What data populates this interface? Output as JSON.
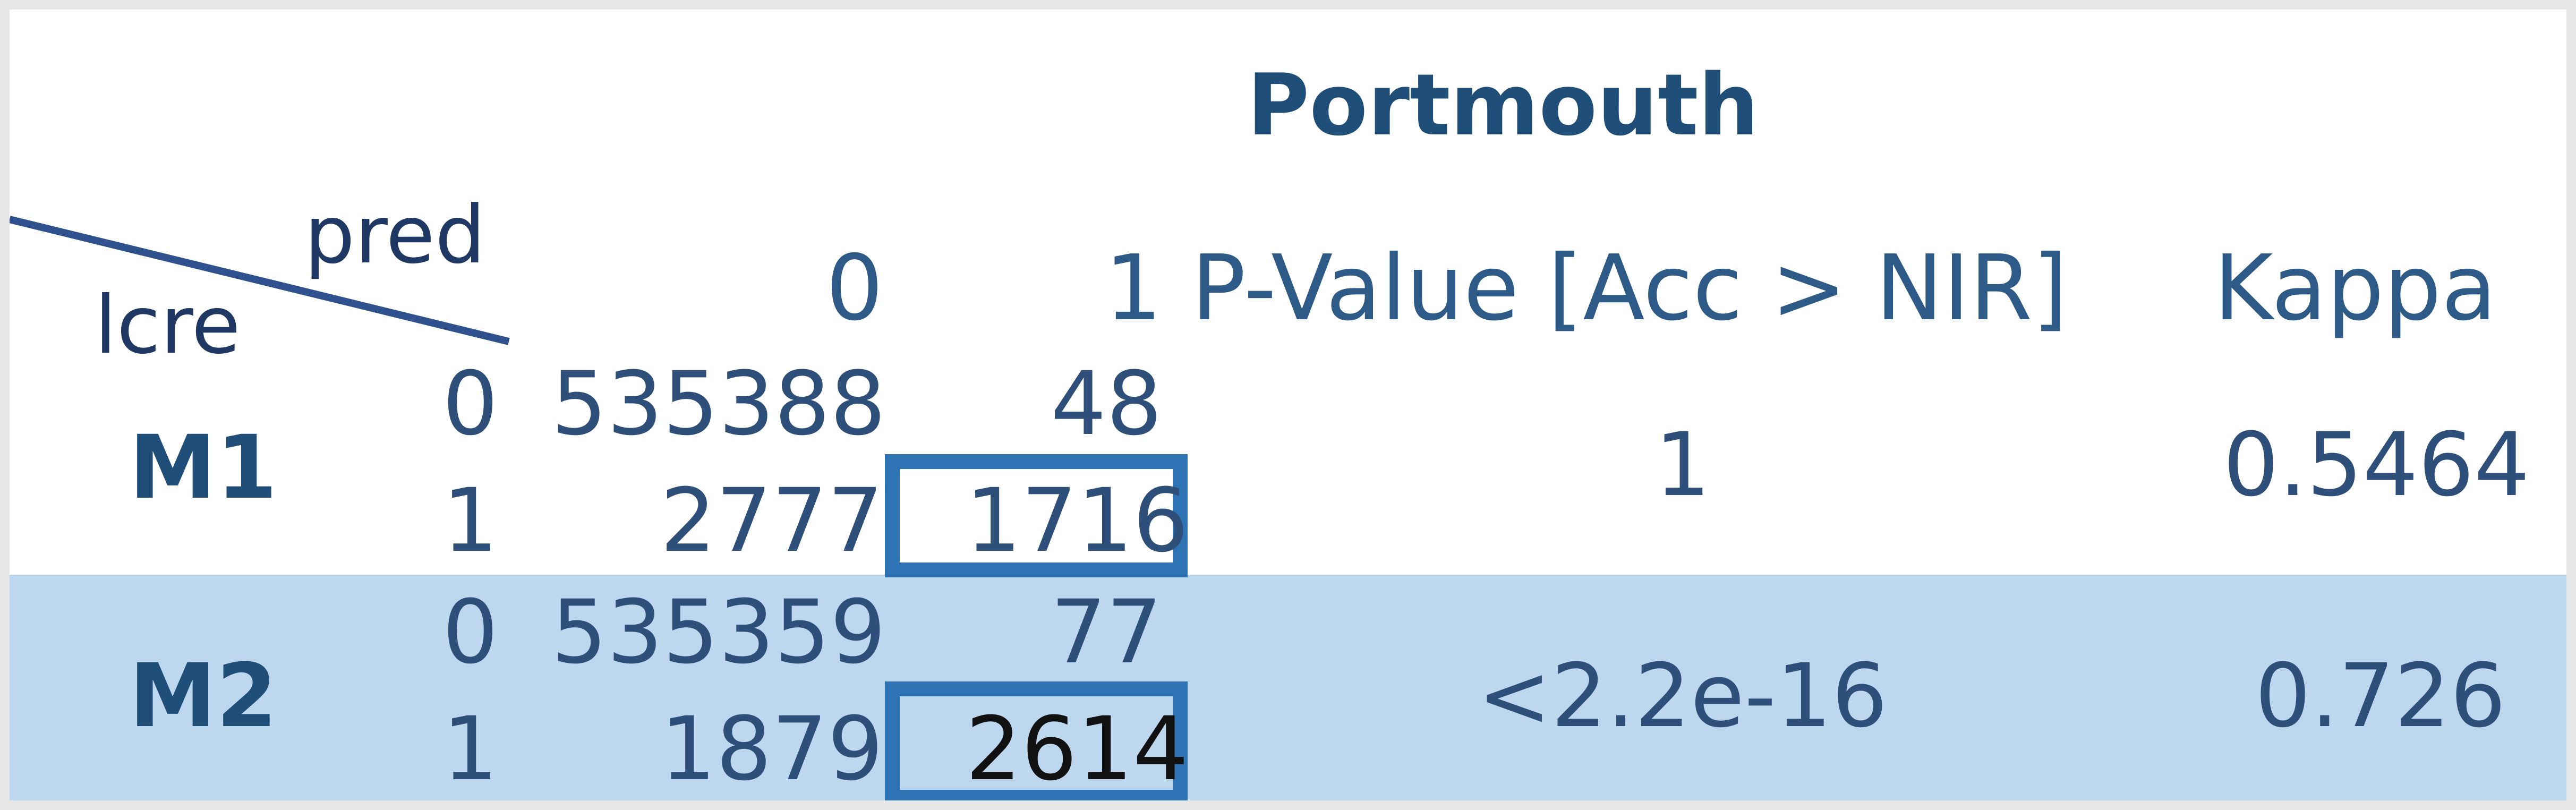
{
  "title": "Portmouth",
  "corner": {
    "col_label": "pred",
    "row_label": "lcre"
  },
  "headers": {
    "pred_0": "0",
    "pred_1": "1",
    "pvalue": "P-Value [Acc > NIR]",
    "kappa": "Kappa"
  },
  "models": [
    {
      "name": "M1",
      "rows": [
        {
          "lcre": "0",
          "pred0": "535388",
          "pred1": "48"
        },
        {
          "lcre": "1",
          "pred0": "2777",
          "pred1": "1716"
        }
      ],
      "pvalue": "1",
      "kappa": "0.5464"
    },
    {
      "name": "M2",
      "rows": [
        {
          "lcre": "0",
          "pred0": "535359",
          "pred1": "77"
        },
        {
          "lcre": "1",
          "pred0": "1879",
          "pred1": "2614"
        }
      ],
      "pvalue": "<2.2e-16",
      "kappa": "0.726"
    }
  ],
  "colors": {
    "text": "#2d4f7c",
    "title": "#1f4e79",
    "m2_band": "#bdd7ee",
    "highlight_box": "#2e74b5"
  }
}
